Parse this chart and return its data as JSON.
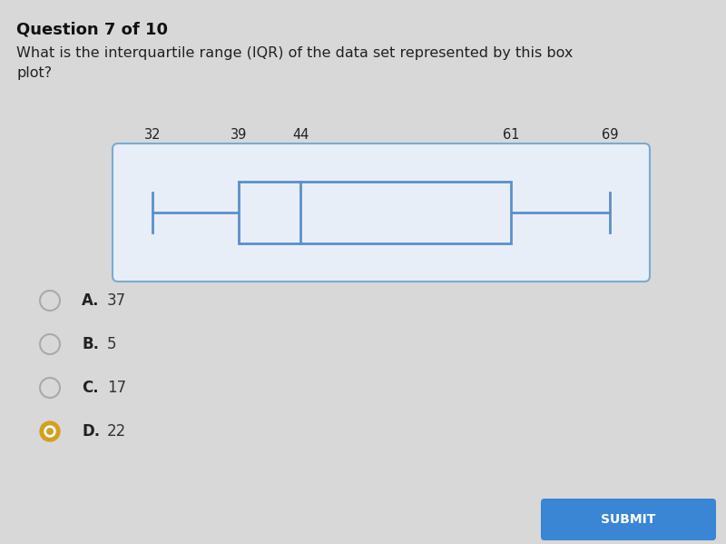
{
  "question_header": "Question 7 of 10",
  "question_text": "What is the interquartile range (IQR) of the data set represented by this box\nplot?",
  "box_plot": {
    "min": 32,
    "q1": 39,
    "median": 44,
    "q3": 61,
    "max": 69
  },
  "choices": [
    {
      "label": "A.",
      "value": "37",
      "selected": false
    },
    {
      "label": "B.",
      "value": "5",
      "selected": false
    },
    {
      "label": "C.",
      "value": "17",
      "selected": false
    },
    {
      "label": "D.",
      "value": "22",
      "selected": true
    }
  ],
  "bg_color": "#d8d8d8",
  "plot_container_bg": "#e8eef8",
  "plot_container_edge": "#7aaad0",
  "box_fill_color": "#e8eef8",
  "box_edge_color": "#5b8fc9",
  "whisker_color": "#5b8fc9",
  "text_color": "#222222",
  "header_color": "#111111",
  "label_color": "#555577",
  "selected_circle_fill": "#d4a020",
  "selected_circle_edge": "#d4a020",
  "unselected_circle_edge": "#aaaaaa",
  "answer_bold_color": "#222222",
  "answer_val_color": "#333333",
  "submit_btn_color": "#3a85d4",
  "content_bg": "#e8e8e8"
}
